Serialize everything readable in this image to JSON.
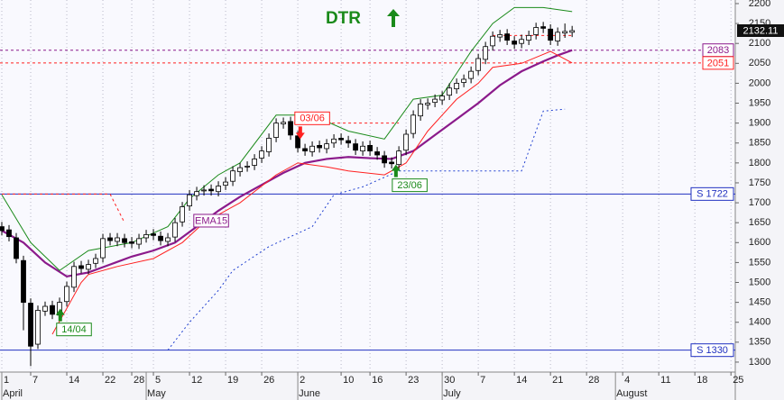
{
  "chart_data": {
    "type": "candlestick",
    "title": "DTR",
    "x": [
      0,
      1,
      2,
      3,
      4,
      5,
      6,
      7,
      8,
      9,
      10,
      11,
      12,
      13,
      14,
      15,
      16,
      17,
      18,
      19,
      20,
      21,
      22,
      23,
      24,
      25,
      26,
      27,
      28,
      29,
      30,
      31,
      32,
      33,
      34,
      35,
      36,
      37,
      38,
      39,
      40,
      41,
      42,
      43,
      44,
      45,
      46,
      47,
      48,
      49,
      50,
      51,
      52,
      53,
      54,
      55,
      56,
      57,
      58,
      59,
      60,
      61,
      62,
      63,
      64,
      65,
      66,
      67,
      68,
      69,
      70,
      71,
      72,
      73,
      74,
      75,
      76,
      77,
      78,
      79
    ],
    "open": [
      1640,
      1632,
      1612,
      1555,
      1448,
      1345,
      1428,
      1442,
      1418,
      1452,
      1488,
      1542,
      1533,
      1548,
      1562,
      1612,
      1603,
      1610,
      1602,
      1596,
      1612,
      1622,
      1616,
      1603,
      1614,
      1652,
      1692,
      1718,
      1730,
      1734,
      1728,
      1744,
      1754,
      1778,
      1790,
      1794,
      1812,
      1828,
      1864,
      1898,
      1904,
      1868,
      1836,
      1828,
      1844,
      1836,
      1850,
      1862,
      1856,
      1848,
      1830,
      1844,
      1828,
      1818,
      1802,
      1796,
      1832,
      1874,
      1918,
      1946,
      1952,
      1958,
      1970,
      1986,
      2002,
      2012,
      2032,
      2060,
      2094,
      2116,
      2124,
      2106,
      2100,
      2108,
      2122,
      2142,
      2136,
      2106,
      2126,
      2128
    ],
    "high": [
      1652,
      1644,
      1624,
      1567,
      1460,
      1442,
      1452,
      1454,
      1462,
      1502,
      1552,
      1554,
      1557,
      1572,
      1622,
      1624,
      1624,
      1622,
      1614,
      1622,
      1632,
      1634,
      1628,
      1624,
      1662,
      1702,
      1732,
      1740,
      1744,
      1746,
      1754,
      1764,
      1792,
      1800,
      1804,
      1822,
      1842,
      1874,
      1912,
      1914,
      1916,
      1880,
      1848,
      1854,
      1856,
      1860,
      1872,
      1874,
      1868,
      1860,
      1854,
      1856,
      1840,
      1830,
      1814,
      1842,
      1884,
      1932,
      1960,
      1962,
      1972,
      1980,
      2000,
      2012,
      2022,
      2042,
      2074,
      2104,
      2130,
      2134,
      2136,
      2118,
      2122,
      2132,
      2152,
      2154,
      2148,
      2140,
      2150,
      2144
    ],
    "low": [
      1618,
      1603,
      1548,
      1380,
      1290,
      1333,
      1416,
      1408,
      1406,
      1440,
      1476,
      1523,
      1521,
      1536,
      1550,
      1593,
      1591,
      1588,
      1586,
      1584,
      1600,
      1606,
      1593,
      1591,
      1602,
      1640,
      1680,
      1706,
      1718,
      1718,
      1716,
      1732,
      1742,
      1766,
      1778,
      1782,
      1800,
      1816,
      1852,
      1886,
      1858,
      1826,
      1818,
      1816,
      1826,
      1824,
      1838,
      1846,
      1838,
      1820,
      1818,
      1818,
      1808,
      1788,
      1786,
      1784,
      1820,
      1862,
      1906,
      1934,
      1940,
      1946,
      1958,
      1974,
      1990,
      2000,
      2020,
      2048,
      2082,
      2104,
      2096,
      2086,
      2088,
      2096,
      2110,
      2126,
      2096,
      2094,
      2114,
      2116
    ],
    "close": [
      1630,
      1615,
      1560,
      1450,
      1340,
      1430,
      1440,
      1420,
      1450,
      1490,
      1540,
      1535,
      1545,
      1560,
      1610,
      1605,
      1612,
      1600,
      1598,
      1610,
      1620,
      1618,
      1605,
      1612,
      1650,
      1690,
      1720,
      1728,
      1732,
      1730,
      1742,
      1752,
      1780,
      1788,
      1792,
      1810,
      1830,
      1862,
      1900,
      1902,
      1870,
      1838,
      1830,
      1842,
      1838,
      1848,
      1860,
      1858,
      1850,
      1832,
      1842,
      1830,
      1820,
      1800,
      1798,
      1830,
      1872,
      1920,
      1948,
      1950,
      1960,
      1968,
      1988,
      2000,
      2010,
      2030,
      2062,
      2092,
      2118,
      2122,
      2108,
      2098,
      2110,
      2120,
      2140,
      2138,
      2108,
      2128,
      2130,
      2132.11
    ],
    "last_price": {
      "value": 2132.11,
      "label": "2132.11"
    },
    "series": [
      {
        "name": "EMA15",
        "color": "#8b1a8b",
        "width": 2.2,
        "dash": "none",
        "x": [
          0,
          3,
          6,
          9,
          12,
          15,
          18,
          21,
          24,
          27,
          30,
          33,
          36,
          39,
          42,
          45,
          48,
          51,
          54,
          57,
          60,
          63,
          66,
          69,
          72,
          75,
          77,
          79
        ],
        "values": [
          1630,
          1600,
          1550,
          1515,
          1525,
          1545,
          1565,
          1580,
          1600,
          1640,
          1680,
          1715,
          1745,
          1775,
          1800,
          1810,
          1815,
          1812,
          1810,
          1830,
          1870,
          1910,
          1950,
          1995,
          2030,
          2055,
          2070,
          2083
        ]
      },
      {
        "color": "#ff2020",
        "width": 1,
        "dash": "none",
        "x": [
          7,
          11,
          12,
          16,
          21,
          25,
          28,
          33,
          38,
          41,
          45,
          48,
          53,
          56,
          59,
          63,
          66,
          68,
          72,
          76,
          79
        ],
        "values": [
          1370,
          1500,
          1520,
          1540,
          1560,
          1600,
          1650,
          1700,
          1770,
          1800,
          1790,
          1780,
          1770,
          1800,
          1880,
          1960,
          2000,
          2040,
          2050,
          2080,
          2051
        ]
      },
      {
        "color": "#1a8a1a",
        "width": 1,
        "dash": "none",
        "x": [
          0,
          4,
          8,
          12,
          18,
          23,
          26,
          30,
          33,
          38,
          43,
          48,
          53,
          57,
          61,
          65,
          68,
          71,
          75,
          79
        ],
        "values": [
          1720,
          1600,
          1530,
          1580,
          1600,
          1640,
          1710,
          1770,
          1800,
          1920,
          1920,
          1880,
          1860,
          1960,
          1970,
          2080,
          2150,
          2190,
          2190,
          2180
        ]
      },
      {
        "color": "#2040d0",
        "width": 1,
        "dash": "2 3",
        "x": [
          23,
          26,
          30,
          32,
          37,
          43,
          46,
          50,
          55,
          72,
          75,
          78
        ],
        "values": [
          1330,
          1400,
          1480,
          1530,
          1590,
          1640,
          1720,
          1740,
          1780,
          1780,
          1930,
          1935
        ]
      },
      {
        "color": "#ff2020",
        "width": 1,
        "dash": "3 3",
        "x": [
          0,
          15,
          17,
          18,
          39,
          55,
          56,
          68,
          79
        ],
        "values": [
          1722,
          1722,
          1650,
          null,
          1900,
          1900,
          null,
          2120,
          2120
        ]
      }
    ],
    "levels": [
      {
        "value": 2083,
        "label": "2083",
        "color": "#8b1a8b",
        "dash": "3 3"
      },
      {
        "value": 2051,
        "label": "2051",
        "color": "#ff2020",
        "dash": "3 3"
      },
      {
        "value": 1722,
        "label": "S 1722",
        "color": "#2030c0",
        "dash": "none"
      },
      {
        "value": 1330,
        "label": "S 1330",
        "color": "#2030c0",
        "dash": "none"
      }
    ],
    "annotations": [
      {
        "text": "EMA15",
        "x": 29,
        "y": 1655,
        "color": "#8b1a8b",
        "arrow": "none"
      },
      {
        "text": "03/06",
        "x": 43,
        "y": 1912,
        "color": "#ff2020",
        "arrow": "down"
      },
      {
        "text": "23/06",
        "x": 56.5,
        "y": 1744,
        "color": "#1a8a1a",
        "arrow": "up"
      },
      {
        "text": "14/04",
        "x": 10,
        "y": 1382,
        "color": "#1a8a1a",
        "arrow": "up"
      }
    ],
    "xlim": [
      -0.25,
      101.6
    ],
    "ylim": [
      1275,
      2209
    ],
    "xticks": [
      {
        "value": 0,
        "label": "1"
      },
      {
        "value": 4,
        "label": "7"
      },
      {
        "value": 9,
        "label": "14"
      },
      {
        "value": 14,
        "label": "22"
      },
      {
        "value": 18,
        "label": "28"
      },
      {
        "value": 21,
        "label": "5"
      },
      {
        "value": 26,
        "label": "12"
      },
      {
        "value": 31,
        "label": "19"
      },
      {
        "value": 36,
        "label": "26"
      },
      {
        "value": 41,
        "label": "2"
      },
      {
        "value": 47,
        "label": "10"
      },
      {
        "value": 51,
        "label": "16"
      },
      {
        "value": 56,
        "label": "23"
      },
      {
        "value": 61,
        "label": "30"
      },
      {
        "value": 66,
        "label": "7"
      },
      {
        "value": 71,
        "label": "14"
      },
      {
        "value": 76,
        "label": "21"
      },
      {
        "value": 81,
        "label": "28"
      },
      {
        "value": 86,
        "label": "4"
      },
      {
        "value": 91,
        "label": "11"
      },
      {
        "value": 96,
        "label": "18"
      },
      {
        "value": 101,
        "label": "25"
      }
    ],
    "months": [
      {
        "value": 0,
        "label": "April"
      },
      {
        "value": 20,
        "label": "May"
      },
      {
        "value": 41,
        "label": "June"
      },
      {
        "value": 61,
        "label": "July"
      },
      {
        "value": 85,
        "label": "August"
      }
    ],
    "yticks": [
      1300,
      1350,
      1400,
      1450,
      1500,
      1550,
      1600,
      1650,
      1700,
      1750,
      1800,
      1850,
      1900,
      1950,
      2000,
      2050,
      2100,
      2150,
      2200
    ],
    "grid": true
  }
}
